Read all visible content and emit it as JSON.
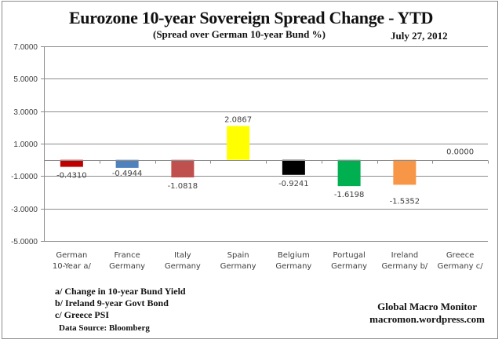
{
  "chart_data": {
    "type": "bar",
    "title": "Eurozone 10-year Sovereign Spread Change - YTD",
    "subtitle": "(Spread over German 10-year Bund %)",
    "date": "July 27,  2012",
    "xlabel": "",
    "ylabel": "",
    "ylim": [
      -5,
      7
    ],
    "yticks": [
      7,
      5,
      3,
      1,
      -1,
      -3,
      -5
    ],
    "ytick_labels": [
      "7.0000",
      "5.0000",
      "3.0000",
      "1.0000",
      "-1.0000",
      "-3.0000",
      "-5.0000"
    ],
    "grid": true,
    "categories": [
      [
        "German",
        "10-Year a/"
      ],
      [
        "France",
        "Germany"
      ],
      [
        "Italy",
        "Germany"
      ],
      [
        "Spain",
        "Germany"
      ],
      [
        "Belgium",
        "Germany"
      ],
      [
        "Portugal",
        "Germany"
      ],
      [
        "Ireland",
        "Germany b/"
      ],
      [
        "Greece",
        "Germany c/"
      ]
    ],
    "values": [
      -0.431,
      -0.4944,
      -1.0818,
      2.0867,
      -0.9241,
      -1.6198,
      -1.5352,
      0.0
    ],
    "data_labels": [
      "-0.4310",
      "-0.4944",
      "-1.0818",
      "2.0867",
      "-0.9241",
      "-1.6198",
      "-1.5352",
      "0.0000"
    ],
    "colors": [
      "#c00000",
      "#4f81bd",
      "#c0504d",
      "#ffff00",
      "#000000",
      "#00b050",
      "#f79646",
      "#ffffff"
    ]
  },
  "footnotes": [
    "a/  Change in 10-year Bund Yield",
    "b/  Ireland 9-year Govt Bond",
    "c/  Greece PSI"
  ],
  "source": "Data Source:  Bloomberg",
  "credit": {
    "name": "Global Macro Monitor",
    "site": "macromon.wordpress.com"
  }
}
